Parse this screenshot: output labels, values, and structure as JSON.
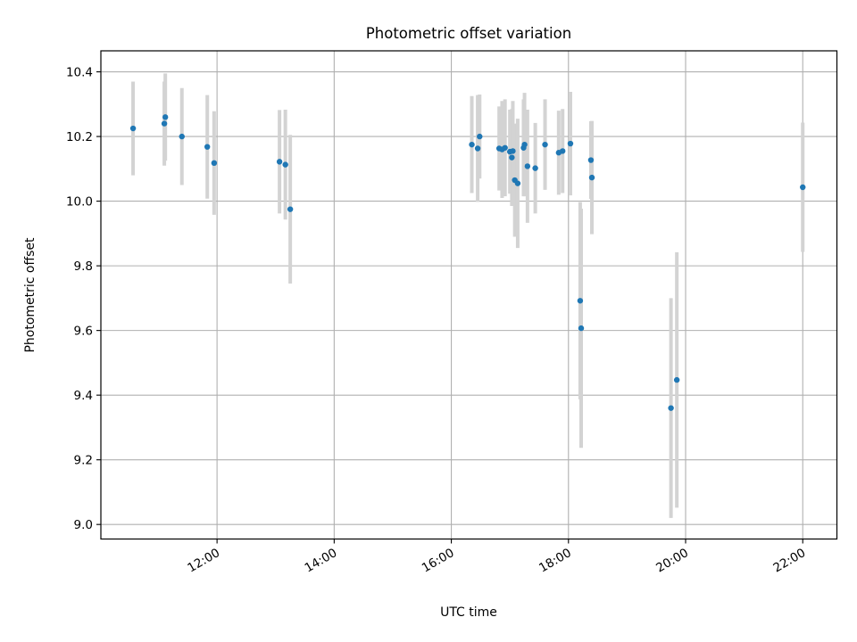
{
  "chart_data": {
    "type": "scatter",
    "title": "Photometric offset variation",
    "xlabel": "UTC time",
    "ylabel": "Photometric offset",
    "x_axis_kind": "time",
    "xlim": [
      "10:01",
      "22:35"
    ],
    "ylim": [
      8.955,
      10.465
    ],
    "grid": true,
    "x_ticks": [
      "12:00",
      "14:00",
      "16:00",
      "18:00",
      "20:00",
      "22:00"
    ],
    "y_ticks": [
      "9.0",
      "9.2",
      "9.4",
      "9.6",
      "9.8",
      "10.0",
      "10.2",
      "10.4"
    ],
    "marker_color": "#1f77b4",
    "errorbar_color": "#d3d3d3",
    "points": [
      {
        "x": "10:34",
        "y": 10.225,
        "err": 0.145
      },
      {
        "x": "11:06",
        "y": 10.24,
        "err": 0.13
      },
      {
        "x": "11:07",
        "y": 10.26,
        "err": 0.135
      },
      {
        "x": "11:24",
        "y": 10.2,
        "err": 0.15
      },
      {
        "x": "11:50",
        "y": 10.168,
        "err": 0.16
      },
      {
        "x": "11:57",
        "y": 10.118,
        "err": 0.16
      },
      {
        "x": "13:04",
        "y": 10.122,
        "err": 0.16
      },
      {
        "x": "13:10",
        "y": 10.113,
        "err": 0.17
      },
      {
        "x": "13:15",
        "y": 9.975,
        "err": 0.23
      },
      {
        "x": "16:21",
        "y": 10.175,
        "err": 0.15
      },
      {
        "x": "16:27",
        "y": 10.163,
        "err": 0.165
      },
      {
        "x": "16:29",
        "y": 10.2,
        "err": 0.13
      },
      {
        "x": "16:49",
        "y": 10.163,
        "err": 0.13
      },
      {
        "x": "16:52",
        "y": 10.16,
        "err": 0.15
      },
      {
        "x": "16:55",
        "y": 10.165,
        "err": 0.15
      },
      {
        "x": "17:00",
        "y": 10.153,
        "err": 0.13
      },
      {
        "x": "17:02",
        "y": 10.135,
        "err": 0.15
      },
      {
        "x": "17:03",
        "y": 10.155,
        "err": 0.155
      },
      {
        "x": "17:05",
        "y": 10.065,
        "err": 0.175
      },
      {
        "x": "17:08",
        "y": 10.055,
        "err": 0.2
      },
      {
        "x": "17:14",
        "y": 10.165,
        "err": 0.15
      },
      {
        "x": "17:15",
        "y": 10.175,
        "err": 0.16
      },
      {
        "x": "17:18",
        "y": 10.108,
        "err": 0.175
      },
      {
        "x": "17:26",
        "y": 10.102,
        "err": 0.14
      },
      {
        "x": "17:36",
        "y": 10.175,
        "err": 0.14
      },
      {
        "x": "17:50",
        "y": 10.15,
        "err": 0.13
      },
      {
        "x": "17:54",
        "y": 10.155,
        "err": 0.13
      },
      {
        "x": "18:02",
        "y": 10.178,
        "err": 0.16
      },
      {
        "x": "18:12",
        "y": 9.692,
        "err": 0.305
      },
      {
        "x": "18:13",
        "y": 9.607,
        "err": 0.37
      },
      {
        "x": "18:23",
        "y": 10.127,
        "err": 0.12
      },
      {
        "x": "18:24",
        "y": 10.073,
        "err": 0.175
      },
      {
        "x": "19:45",
        "y": 9.36,
        "err": 0.34
      },
      {
        "x": "19:51",
        "y": 9.447,
        "err": 0.395
      },
      {
        "x": "22:00",
        "y": 10.043,
        "err": 0.2
      }
    ]
  }
}
